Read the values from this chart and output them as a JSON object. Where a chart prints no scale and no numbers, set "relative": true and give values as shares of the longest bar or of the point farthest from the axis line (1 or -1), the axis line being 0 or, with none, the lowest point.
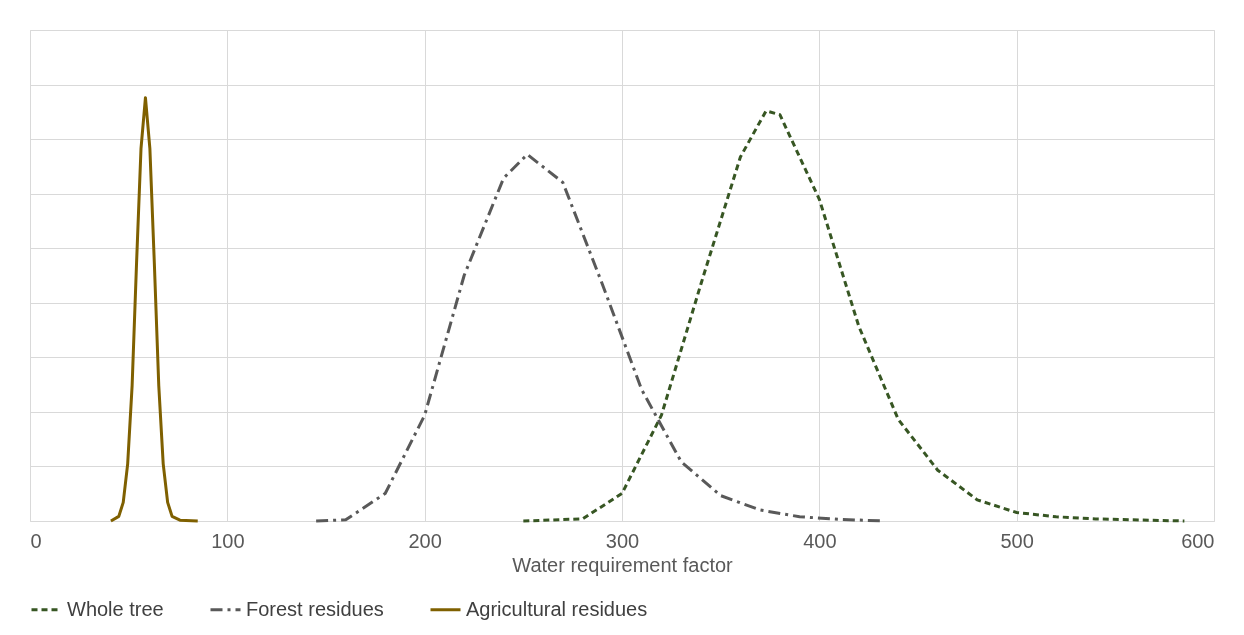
{
  "chart_data": {
    "type": "line",
    "xlabel": "Water requirement factor",
    "xlim": [
      0,
      600
    ],
    "xticks": [
      0,
      100,
      200,
      300,
      400,
      500,
      600
    ],
    "relative": true,
    "grid": true,
    "legend": "bottom",
    "marker": "none",
    "series": [
      {
        "name": "Whole tree",
        "color": "#375623",
        "line_style": "dashed",
        "x": [
          250,
          280,
          300,
          320,
          340,
          360,
          373,
          380,
          400,
          420,
          440,
          460,
          480,
          500,
          520,
          540,
          585
        ],
        "values": [
          0,
          0.005,
          0.065,
          0.25,
          0.56,
          0.86,
          0.969,
          0.96,
          0.76,
          0.46,
          0.24,
          0.12,
          0.05,
          0.02,
          0.01,
          0.005,
          0
        ]
      },
      {
        "name": "Forest residues",
        "color": "#595959",
        "line_style": "dashdot",
        "x": [
          145,
          160,
          180,
          200,
          220,
          240,
          252,
          270,
          290,
          310,
          330,
          350,
          370,
          390,
          410,
          433
        ],
        "values": [
          0,
          0.003,
          0.065,
          0.25,
          0.58,
          0.81,
          0.866,
          0.8,
          0.56,
          0.31,
          0.14,
          0.06,
          0.026,
          0.01,
          0.004,
          0
        ]
      },
      {
        "name": "Agricultural residues",
        "color": "#7f6000",
        "line_style": "solid",
        "x": [
          41,
          45,
          47.25,
          49.5,
          51.75,
          54,
          56.25,
          58.5,
          60.75,
          63,
          65.25,
          67.5,
          69.75,
          72,
          76,
          85
        ],
        "values": [
          0,
          0.011,
          0.044,
          0.135,
          0.32,
          0.61,
          0.88,
          1,
          0.88,
          0.61,
          0.32,
          0.135,
          0.044,
          0.011,
          0.002,
          0
        ]
      }
    ]
  }
}
